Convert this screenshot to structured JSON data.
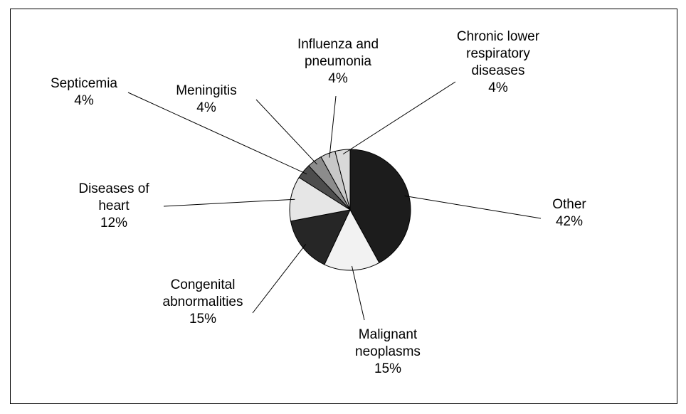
{
  "chart_data": {
    "type": "pie",
    "categories": [
      "Other",
      "Malignant neoplasms",
      "Congenital abnormalities",
      "Diseases of heart",
      "Septicemia",
      "Meningitis",
      "Influenza and pneumonia",
      "Chronic lower respiratory diseases"
    ],
    "values": [
      42,
      15,
      15,
      12,
      4,
      4,
      4,
      4
    ],
    "value_labels": [
      "42%",
      "15%",
      "15%",
      "12%",
      "4%",
      "4%",
      "4%",
      "4%"
    ],
    "colors": [
      "#1c1c1c",
      "#f2f2f2",
      "#262626",
      "#e6e6e6",
      "#4d4d4d",
      "#8c8c8c",
      "#c8c8c8",
      "#d9d9d9"
    ]
  }
}
